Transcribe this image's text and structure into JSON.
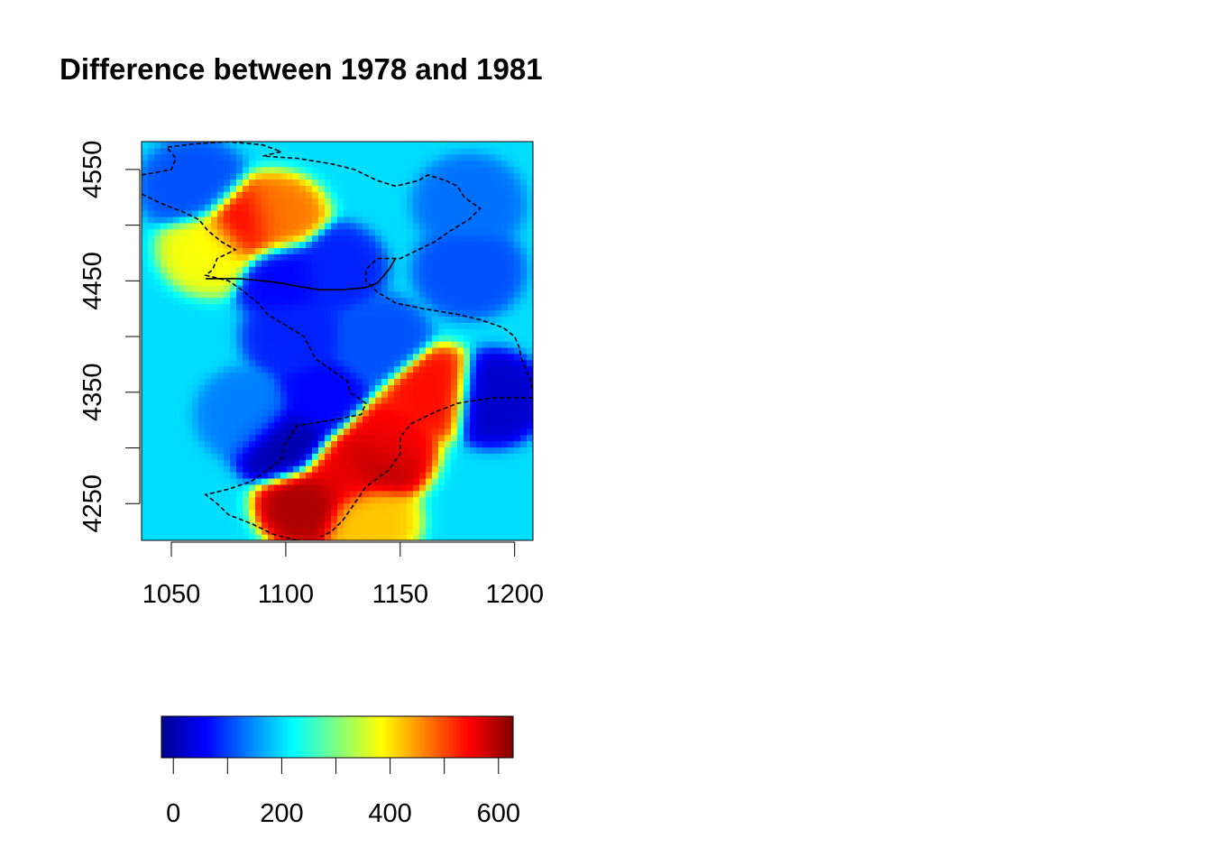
{
  "chart_data": {
    "type": "heatmap",
    "title": "Difference between 1978 and 1981",
    "xlabel": "",
    "ylabel": "",
    "xlim": [
      1037,
      1208
    ],
    "ylim": [
      4217,
      4575
    ],
    "x_ticks": [
      1050,
      1100,
      1150,
      1200
    ],
    "y_ticks": [
      4250,
      4350,
      4450,
      4550
    ],
    "colorbar": {
      "range": [
        -22,
        627
      ],
      "ticks": [
        0,
        100,
        200,
        300,
        400,
        500,
        600
      ],
      "tick_labels": [
        "0",
        "200",
        "400",
        "600"
      ],
      "palette": [
        "#00008F",
        "#0000FF",
        "#0080FF",
        "#00FFFF",
        "#80FF80",
        "#FFFF00",
        "#FF8000",
        "#FF0000",
        "#800000"
      ]
    },
    "background_level": 200,
    "hotspots": [
      {
        "x": 1110,
        "y": 4250,
        "value": 600
      },
      {
        "x": 1125,
        "y": 4275,
        "value": 560
      },
      {
        "x": 1140,
        "y": 4290,
        "value": 590
      },
      {
        "x": 1143,
        "y": 4305,
        "value": 550
      },
      {
        "x": 1165,
        "y": 4350,
        "value": 540
      },
      {
        "x": 1082,
        "y": 4500,
        "value": 550
      },
      {
        "x": 1095,
        "y": 4505,
        "value": 470
      },
      {
        "x": 1068,
        "y": 4480,
        "value": 380
      },
      {
        "x": 1135,
        "y": 4235,
        "value": 420
      },
      {
        "x": 1100,
        "y": 4305,
        "value": 0
      },
      {
        "x": 1115,
        "y": 4345,
        "value": 60
      },
      {
        "x": 1190,
        "y": 4345,
        "value": 20
      },
      {
        "x": 1100,
        "y": 4455,
        "value": 60
      },
      {
        "x": 1120,
        "y": 4460,
        "value": 80
      },
      {
        "x": 1060,
        "y": 4535,
        "value": 110
      },
      {
        "x": 1180,
        "y": 4460,
        "value": 110
      },
      {
        "x": 1180,
        "y": 4520,
        "value": 130
      },
      {
        "x": 1105,
        "y": 4400,
        "value": 80
      },
      {
        "x": 1140,
        "y": 4395,
        "value": 110
      },
      {
        "x": 1085,
        "y": 4330,
        "value": 140
      }
    ],
    "boundaries": {
      "dashed_west_south": [
        [
          1037,
          4545
        ],
        [
          1050,
          4550
        ],
        [
          1052,
          4560
        ],
        [
          1048,
          4570
        ],
        [
          1060,
          4573
        ],
        [
          1075,
          4575
        ],
        [
          1090,
          4572
        ],
        [
          1098,
          4566
        ],
        [
          1090,
          4562
        ],
        [
          1105,
          4560
        ],
        [
          1120,
          4555
        ],
        [
          1130,
          4550
        ],
        [
          1140,
          4540
        ],
        [
          1148,
          4535
        ],
        [
          1158,
          4540
        ],
        [
          1162,
          4545
        ],
        [
          1170,
          4540
        ],
        [
          1175,
          4535
        ],
        [
          1178,
          4525
        ],
        [
          1185,
          4515
        ],
        [
          1180,
          4505
        ],
        [
          1172,
          4495
        ],
        [
          1165,
          4485
        ],
        [
          1155,
          4475
        ],
        [
          1150,
          4470
        ],
        [
          1140,
          4470
        ],
        [
          1135,
          4460
        ],
        [
          1135,
          4450
        ],
        [
          1140,
          4440
        ],
        [
          1148,
          4430
        ],
        [
          1160,
          4425
        ],
        [
          1175,
          4420
        ],
        [
          1185,
          4415
        ],
        [
          1195,
          4408
        ],
        [
          1200,
          4400
        ],
        [
          1202,
          4390
        ],
        [
          1203,
          4380
        ],
        [
          1205,
          4370
        ],
        [
          1207,
          4360
        ],
        [
          1208,
          4350
        ]
      ],
      "dashed_coast": [
        [
          1037,
          4528
        ],
        [
          1045,
          4520
        ],
        [
          1055,
          4512
        ],
        [
          1062,
          4505
        ],
        [
          1066,
          4495
        ],
        [
          1072,
          4485
        ],
        [
          1078,
          4478
        ],
        [
          1070,
          4470
        ],
        [
          1068,
          4460
        ],
        [
          1065,
          4455
        ],
        [
          1075,
          4450
        ],
        [
          1080,
          4443
        ],
        [
          1088,
          4430
        ],
        [
          1092,
          4420
        ],
        [
          1100,
          4410
        ],
        [
          1108,
          4400
        ],
        [
          1113,
          4380
        ],
        [
          1120,
          4370
        ],
        [
          1127,
          4360
        ],
        [
          1128,
          4350
        ],
        [
          1135,
          4340
        ],
        [
          1133,
          4330
        ],
        [
          1120,
          4325
        ],
        [
          1105,
          4320
        ],
        [
          1100,
          4305
        ],
        [
          1098,
          4290
        ],
        [
          1092,
          4280
        ],
        [
          1085,
          4270
        ],
        [
          1075,
          4263
        ],
        [
          1065,
          4258
        ],
        [
          1070,
          4250
        ],
        [
          1075,
          4240
        ],
        [
          1085,
          4232
        ],
        [
          1095,
          4222
        ],
        [
          1105,
          4217
        ]
      ],
      "dashed_east": [
        [
          1208,
          4345
        ],
        [
          1190,
          4345
        ],
        [
          1175,
          4340
        ],
        [
          1165,
          4332
        ],
        [
          1155,
          4322
        ],
        [
          1150,
          4310
        ],
        [
          1150,
          4295
        ],
        [
          1145,
          4280
        ],
        [
          1135,
          4265
        ],
        [
          1130,
          4250
        ],
        [
          1125,
          4235
        ],
        [
          1120,
          4225
        ],
        [
          1115,
          4220
        ]
      ],
      "solid_border": [
        [
          1065,
          4452
        ],
        [
          1080,
          4452
        ],
        [
          1090,
          4450
        ],
        [
          1098,
          4448
        ],
        [
          1105,
          4445
        ],
        [
          1115,
          4442
        ],
        [
          1125,
          4442
        ],
        [
          1135,
          4444
        ],
        [
          1140,
          4448
        ],
        [
          1145,
          4460
        ],
        [
          1148,
          4470
        ]
      ]
    }
  }
}
